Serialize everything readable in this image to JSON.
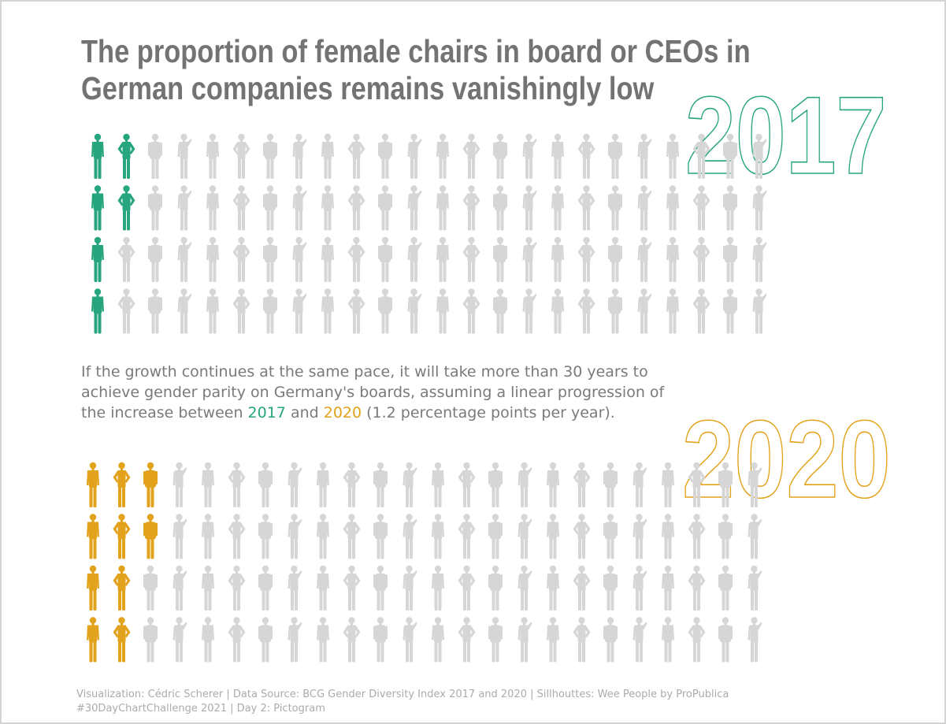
{
  "title": {
    "line1": "The proportion of female chairs in board or CEOs in",
    "line2": "German companies remains vanishingly low"
  },
  "text": {
    "part1": "If the growth continues at the same pace, it will take more than 30 years to",
    "part2": "achieve gender parity on Germany's boards, assuming a linear progression of",
    "part3": "the increase between ",
    "year_a": "2017",
    "and": " and ",
    "year_b": "2020",
    "part4": " (1.2 percentage points per year)."
  },
  "caption": {
    "line1": "Visualization: Cédric Scherer  |  Data Source: BCG Gender Diversity Index 2017 and 2020  |  Sillhouttes: Wee People by ProPublica",
    "line2": "#30DayChartChallenge 2021  |  Day 2: Pictogram"
  },
  "colors": {
    "female_2017": "#26a57f",
    "female_2020": "#e2a21b",
    "male": "#d6d6d6",
    "title": "#737373"
  },
  "chart_data": [
    {
      "type": "pictogram",
      "year": "2017",
      "rows": [
        {
          "female": 2,
          "male": 22
        },
        {
          "female": 2,
          "male": 22
        },
        {
          "female": 1,
          "male": 23
        },
        {
          "female": 1,
          "male": 23
        }
      ],
      "total_female": 6,
      "total": 96
    },
    {
      "type": "pictogram",
      "year": "2020",
      "rows": [
        {
          "female": 3,
          "male": 21
        },
        {
          "female": 3,
          "male": 21
        },
        {
          "female": 2,
          "male": 22
        },
        {
          "female": 2,
          "male": 22
        }
      ],
      "total_female": 10,
      "total": 96
    }
  ]
}
